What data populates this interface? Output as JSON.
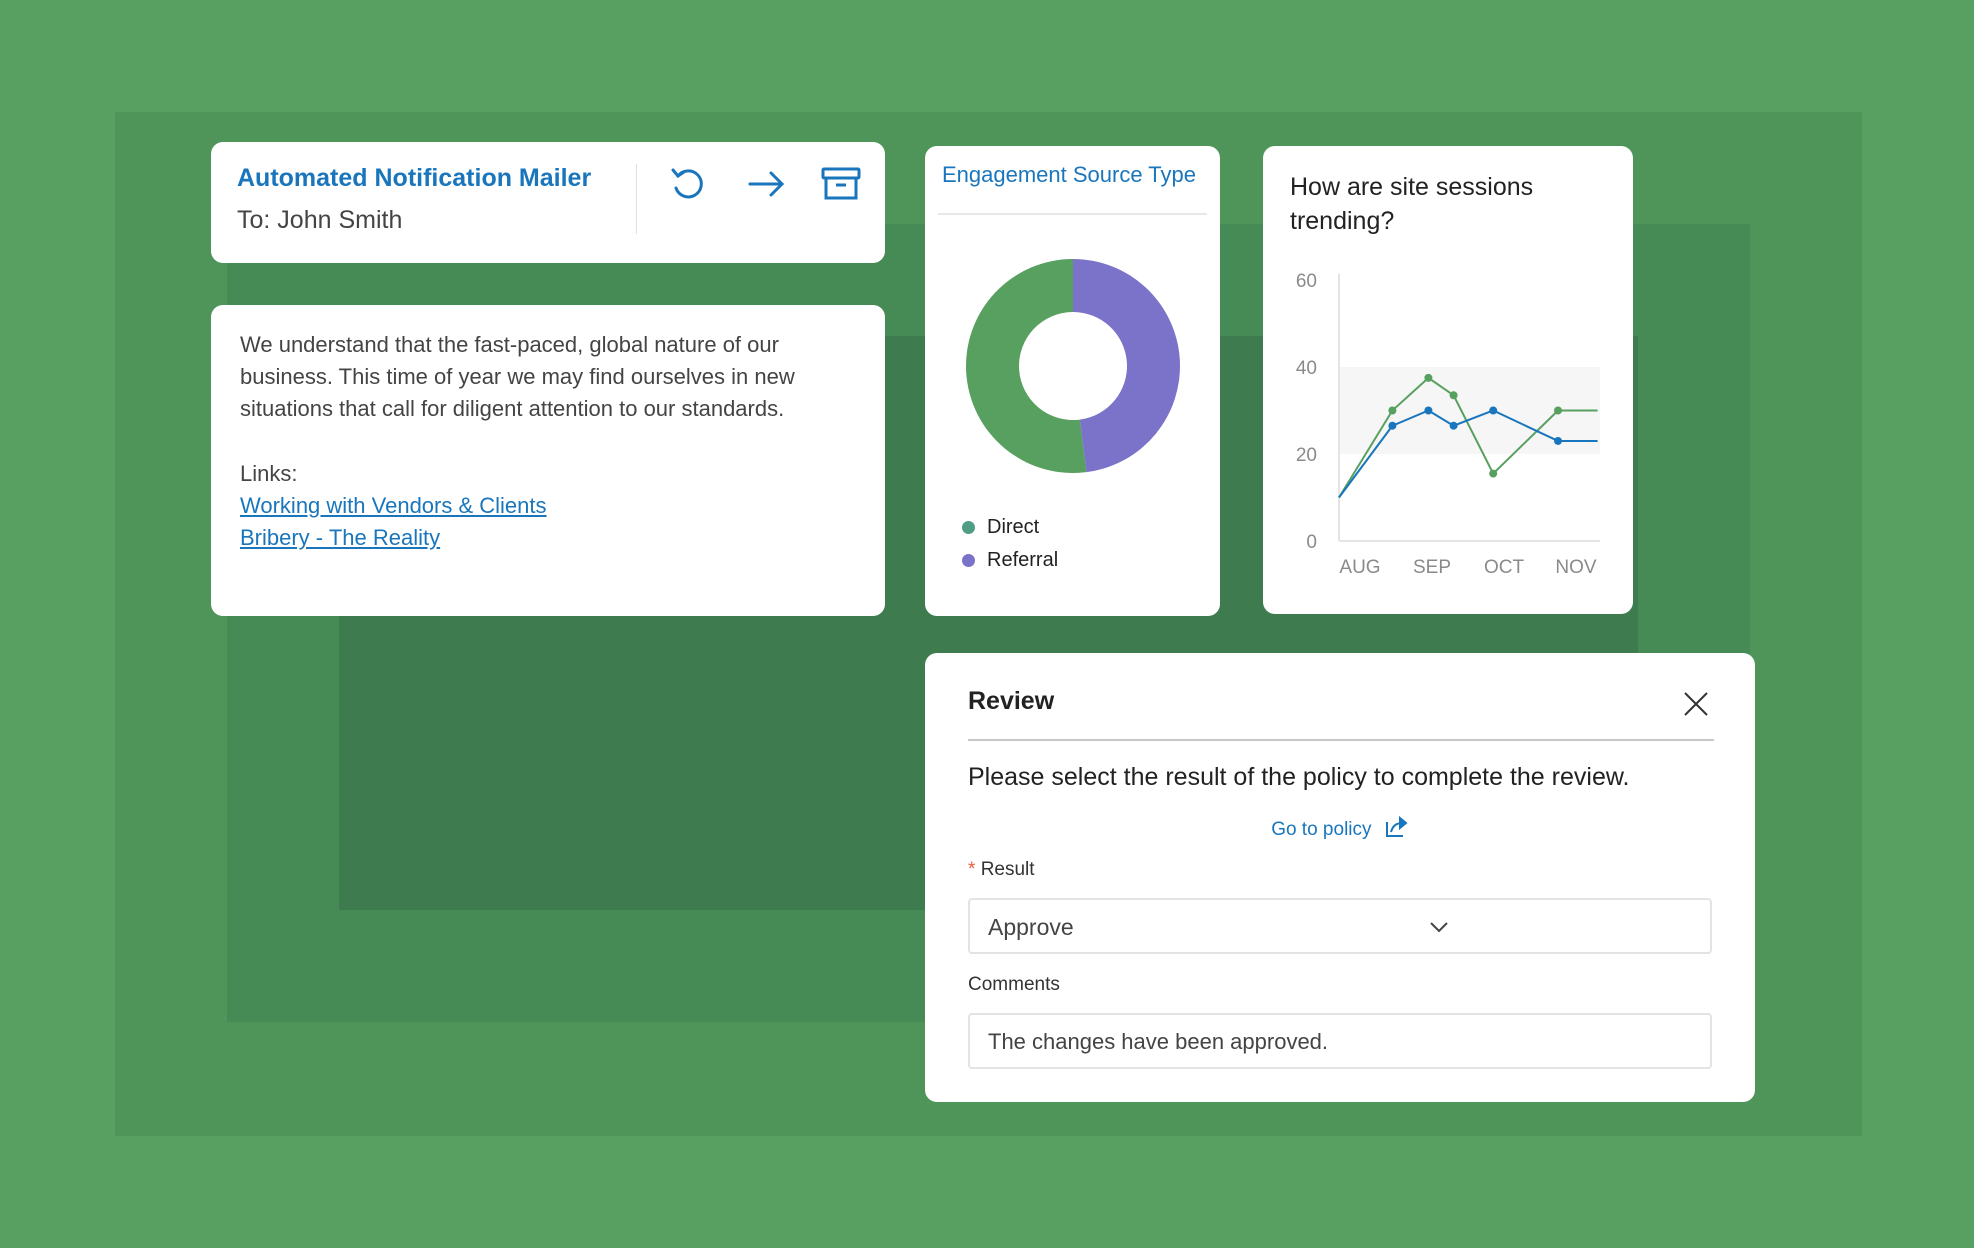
{
  "colors": {
    "background": "#58A062",
    "panel_outer": "#4F955A",
    "panel_middle": "#468A55",
    "panel_inner": "#3E7C50",
    "accent_blue": "#1A76BC",
    "direct_green": "#57A05F",
    "referral_purple": "#7B73C9",
    "required_asterisk": "#E8603C"
  },
  "mailer": {
    "title": "Automated Notification Mailer",
    "recipient": "To: John Smith",
    "actions": [
      {
        "icon": "undo-icon",
        "label": "Undo"
      },
      {
        "icon": "arrow-right-icon",
        "label": "Forward"
      },
      {
        "icon": "archive-icon",
        "label": "Archive"
      }
    ],
    "body": "We understand that the fast-paced, global nature of our business. This time of year we may find ourselves in new situations that call for diligent attention to our standards.",
    "links_label": "Links:",
    "links": [
      "Working with Vendors & Clients",
      "Bribery - The Reality"
    ]
  },
  "engagement": {
    "title": "Engagement Source Type"
  },
  "sessions": {
    "title": "How are site sessions trending?"
  },
  "chart_data": [
    {
      "type": "pie",
      "title": "Engagement Source Type",
      "donut": true,
      "categories": [
        "Direct",
        "Referral"
      ],
      "values": [
        52,
        48
      ],
      "colors": [
        "#57A05F",
        "#7B73C9"
      ],
      "legend": "bottom-left"
    },
    {
      "type": "line",
      "title": "How are site sessions trending?",
      "categories": [
        "AUG",
        "SEP",
        "OCT",
        "NOV"
      ],
      "ylim": [
        0,
        60
      ],
      "yticks": [
        "0",
        "20",
        "40",
        "60"
      ],
      "shaded_band": [
        20,
        40
      ],
      "grid": false,
      "series": [
        {
          "color": "#57A05F",
          "x": [
            -0.3,
            0.45,
            0.95,
            1.3,
            1.85,
            2.75,
            3.3
          ],
          "values": [
            10,
            30,
            37.5,
            33.5,
            15.5,
            30,
            30
          ]
        },
        {
          "color": "#1A76BC",
          "x": [
            -0.3,
            0.45,
            0.95,
            1.3,
            1.85,
            2.75,
            3.3
          ],
          "values": [
            10,
            26.5,
            30,
            26.5,
            30,
            23,
            23
          ]
        }
      ]
    }
  ],
  "review": {
    "title": "Review",
    "description": "Please select the result of the policy to complete the review.",
    "policy_link": "Go to policy",
    "result_required": "*",
    "result_label": "Result",
    "result_value": "Approve",
    "comments_label": "Comments",
    "comments_value": "The changes have been approved."
  }
}
